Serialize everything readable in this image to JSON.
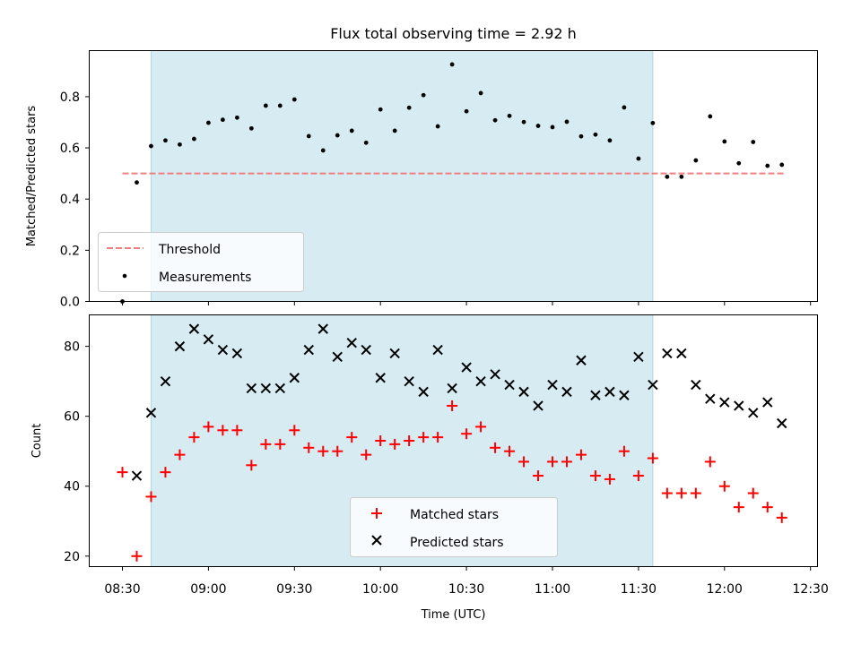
{
  "chart_data": [
    {
      "type": "scatter",
      "title": "Flux total observing time = 2.92 h",
      "ylabel": "Matched/Predicted stars",
      "ylim": [
        0,
        0.98
      ],
      "yticks": [
        "0.0",
        "0.2",
        "0.4",
        "0.6",
        "0.8"
      ],
      "highlight_span": [
        "08:40",
        "11:35"
      ],
      "threshold": 0.5,
      "threshold_x": [
        "08:30",
        "12:21"
      ],
      "legend": [
        "Threshold",
        "Measurements"
      ],
      "legend_position": "lower-left",
      "series": [
        {
          "name": "Measurements",
          "x": [
            "08:30",
            "08:35",
            "08:40",
            "08:45",
            "08:50",
            "08:55",
            "09:00",
            "09:05",
            "09:10",
            "09:15",
            "09:20",
            "09:25",
            "09:30",
            "09:35",
            "09:40",
            "09:45",
            "09:50",
            "09:55",
            "10:00",
            "10:05",
            "10:10",
            "10:15",
            "10:20",
            "10:25",
            "10:30",
            "10:35",
            "10:40",
            "10:45",
            "10:50",
            "10:55",
            "11:00",
            "11:05",
            "11:10",
            "11:15",
            "11:20",
            "11:25",
            "11:30",
            "11:35",
            "11:40",
            "11:45",
            "11:50",
            "11:55",
            "12:00",
            "12:05",
            "12:10",
            "12:15",
            "12:20"
          ],
          "y": [
            0.0,
            0.465,
            0.607,
            0.629,
            0.613,
            0.635,
            0.698,
            0.71,
            0.718,
            0.676,
            0.765,
            0.765,
            0.789,
            0.646,
            0.59,
            0.649,
            0.667,
            0.62,
            0.75,
            0.667,
            0.757,
            0.806,
            0.684,
            0.926,
            0.743,
            0.814,
            0.708,
            0.725,
            0.701,
            0.686,
            0.681,
            0.702,
            0.645,
            0.652,
            0.629,
            0.758,
            0.558,
            0.697,
            0.487,
            0.487,
            0.551,
            0.723,
            0.625,
            0.54,
            0.623,
            0.53,
            0.534
          ]
        }
      ]
    },
    {
      "type": "scatter",
      "xlabel": "Time (UTC)",
      "ylabel": "Count",
      "ylim": [
        17,
        89
      ],
      "yticks": [
        "20",
        "40",
        "60",
        "80"
      ],
      "xticks": [
        "08:30",
        "09:00",
        "09:30",
        "10:00",
        "10:30",
        "11:00",
        "11:30",
        "12:00",
        "12:30"
      ],
      "highlight_span": [
        "08:40",
        "11:35"
      ],
      "legend_position": "lower-center",
      "series": [
        {
          "name": "Matched stars",
          "color": "#ff0000",
          "x": [
            "08:30",
            "08:35",
            "08:40",
            "08:45",
            "08:50",
            "08:55",
            "09:00",
            "09:05",
            "09:10",
            "09:15",
            "09:20",
            "09:25",
            "09:30",
            "09:35",
            "09:40",
            "09:45",
            "09:50",
            "09:55",
            "10:00",
            "10:05",
            "10:10",
            "10:15",
            "10:20",
            "10:25",
            "10:30",
            "10:35",
            "10:40",
            "10:45",
            "10:50",
            "10:55",
            "11:00",
            "11:05",
            "11:10",
            "11:15",
            "11:20",
            "11:25",
            "11:30",
            "11:35",
            "11:40",
            "11:45",
            "11:50",
            "11:55",
            "12:00",
            "12:05",
            "12:10",
            "12:15",
            "12:20"
          ],
          "y": [
            44,
            20,
            37,
            44,
            49,
            54,
            57,
            56,
            56,
            46,
            52,
            52,
            56,
            51,
            50,
            50,
            54,
            49,
            53,
            52,
            53,
            54,
            54,
            63,
            55,
            57,
            51,
            50,
            47,
            43,
            47,
            47,
            49,
            43,
            42,
            50,
            43,
            48,
            38,
            38,
            38,
            47,
            40,
            34,
            38,
            34,
            31
          ]
        },
        {
          "name": "Predicted stars",
          "color": "#000000",
          "x": [
            "08:35",
            "08:40",
            "08:45",
            "08:50",
            "08:55",
            "09:00",
            "09:05",
            "09:10",
            "09:15",
            "09:20",
            "09:25",
            "09:30",
            "09:35",
            "09:40",
            "09:45",
            "09:50",
            "09:55",
            "10:00",
            "10:05",
            "10:10",
            "10:15",
            "10:20",
            "10:25",
            "10:30",
            "10:35",
            "10:40",
            "10:45",
            "10:50",
            "10:55",
            "11:00",
            "11:05",
            "11:10",
            "11:15",
            "11:20",
            "11:25",
            "11:30",
            "11:35",
            "11:40",
            "11:45",
            "11:50",
            "11:55",
            "12:00",
            "12:05",
            "12:10",
            "12:15",
            "12:20"
          ],
          "y": [
            43,
            61,
            70,
            80,
            85,
            82,
            79,
            78,
            68,
            68,
            68,
            71,
            79,
            85,
            77,
            81,
            79,
            71,
            78,
            70,
            67,
            79,
            68,
            74,
            70,
            72,
            69,
            67,
            63,
            69,
            67,
            76,
            66,
            67,
            66,
            77,
            69,
            78,
            78,
            69,
            65,
            64,
            63,
            61,
            64,
            58
          ]
        }
      ]
    }
  ]
}
